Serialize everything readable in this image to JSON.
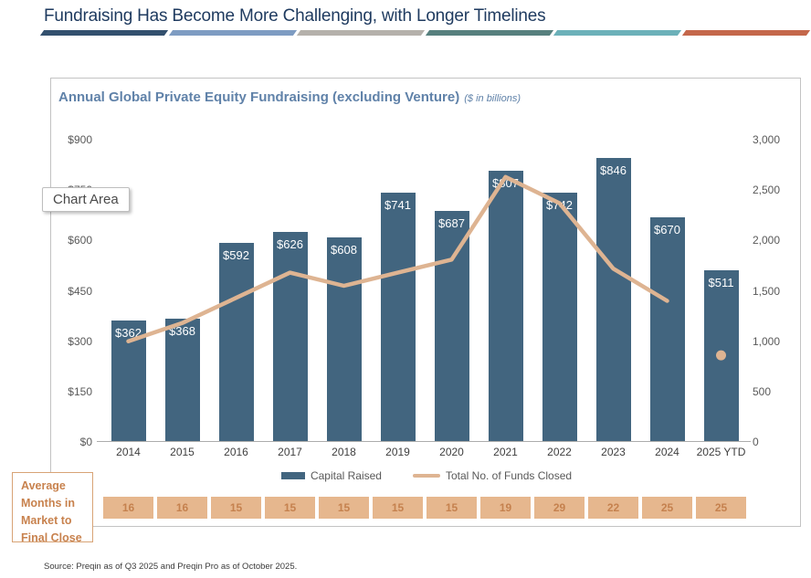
{
  "header": {
    "title": "Fundraising Has Become More Challenging, with Longer Timelines",
    "accent_colors": [
      "#33506E",
      "#7E9CC2",
      "#B5B1AB",
      "#57807E",
      "#6CB1B9",
      "#C4674B"
    ]
  },
  "chart": {
    "title": "Annual Global Private Equity Fundraising (excluding Venture)",
    "subtitle": "($ in billions)"
  },
  "tooltip": {
    "label": "Chart Area"
  },
  "chart_data": {
    "type": "bar",
    "title": "Annual Global Private Equity Fundraising (excluding Venture) ($ in billions)",
    "categories": [
      "2014",
      "2015",
      "2016",
      "2017",
      "2018",
      "2019",
      "2020",
      "2021",
      "2022",
      "2023",
      "2024",
      "2025 YTD"
    ],
    "series": [
      {
        "name": "Capital Raised",
        "type": "bar",
        "axis": "left",
        "color": "#42657F",
        "values": [
          362,
          368,
          592,
          626,
          608,
          741,
          687,
          807,
          742,
          846,
          670,
          511
        ],
        "labels": [
          "$362",
          "$368",
          "$592",
          "$626",
          "$608",
          "$741",
          "$687",
          "$807",
          "$742",
          "$846",
          "$670",
          "$511"
        ]
      },
      {
        "name": "Total No. of Funds Closed",
        "type": "line",
        "axis": "right",
        "color": "#DEB492",
        "values": [
          1000,
          1180,
          1430,
          1680,
          1550,
          1680,
          1810,
          2630,
          2370,
          1720,
          1400,
          860
        ],
        "marker_only_indices": [
          11
        ]
      }
    ],
    "left_axis": {
      "min": 0,
      "max": 900,
      "tick_step": 150,
      "ticks": [
        "$0",
        "$150",
        "$300",
        "$450",
        "$600",
        "$750",
        "$900"
      ]
    },
    "right_axis": {
      "min": 0,
      "max": 3000,
      "tick_step": 500,
      "ticks": [
        "0",
        "500",
        "1,000",
        "1,500",
        "2,000",
        "2,500",
        "3,000"
      ]
    },
    "gridlines": false,
    "legend_position": "bottom"
  },
  "months_row": {
    "label": "Average Months in Market to Final Close",
    "values": [
      "16",
      "16",
      "15",
      "15",
      "15",
      "15",
      "15",
      "19",
      "29",
      "22",
      "25",
      "25"
    ],
    "cell_color": "#E6B78E",
    "text_color": "#C5814E"
  },
  "source": "Source: Preqin as of Q3 2025 and Preqin Pro as of October 2025."
}
